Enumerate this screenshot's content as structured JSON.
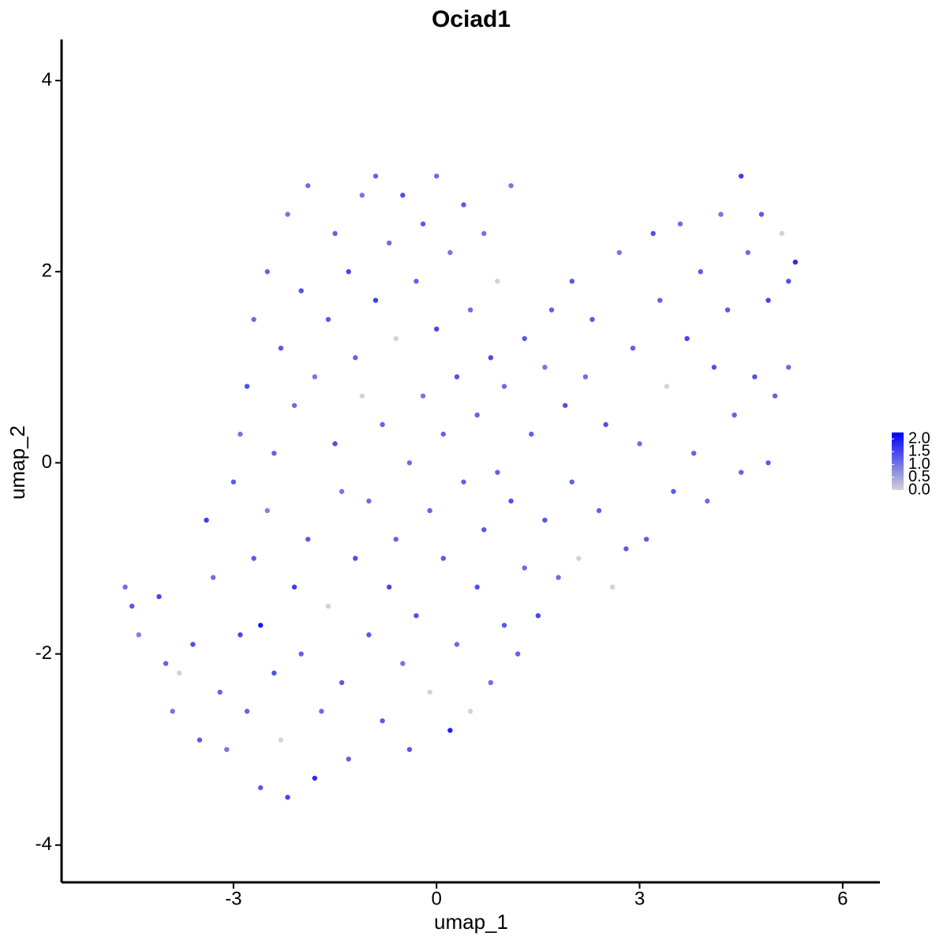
{
  "chart_data": {
    "type": "scatter",
    "title": "Ociad1",
    "x_label": "umap_1",
    "y_label": "umap_2",
    "x": [
      -4.6,
      -4.5,
      -4.4,
      -4.1,
      -4.0,
      -3.9,
      -3.8,
      -3.6,
      -3.5,
      -3.4,
      -3.3,
      -3.2,
      -3.1,
      -3.0,
      -2.9,
      -2.9,
      -2.8,
      -2.8,
      -2.7,
      -2.7,
      -2.6,
      -2.6,
      -2.5,
      -2.5,
      -2.4,
      -2.4,
      -2.3,
      -2.3,
      -2.2,
      -2.2,
      -2.1,
      -2.1,
      -2.0,
      -2.0,
      -1.9,
      -1.9,
      -1.8,
      -1.8,
      -1.7,
      -1.6,
      -1.6,
      -1.5,
      -1.5,
      -1.4,
      -1.4,
      -1.3,
      -1.3,
      -1.2,
      -1.2,
      -1.1,
      -1.1,
      -1.0,
      -1.0,
      -0.9,
      -0.9,
      -0.8,
      -0.8,
      -0.7,
      -0.7,
      -0.6,
      -0.6,
      -0.5,
      -0.5,
      -0.4,
      -0.4,
      -0.3,
      -0.3,
      -0.2,
      -0.2,
      -0.1,
      -0.1,
      0.0,
      0.0,
      0.1,
      0.1,
      0.2,
      0.2,
      0.3,
      0.3,
      0.4,
      0.4,
      0.5,
      0.5,
      0.6,
      0.6,
      0.7,
      0.7,
      0.8,
      0.8,
      0.9,
      0.9,
      1.0,
      1.0,
      1.1,
      1.1,
      1.2,
      1.3,
      1.3,
      1.4,
      1.5,
      1.6,
      1.6,
      1.7,
      1.8,
      1.9,
      2.0,
      2.0,
      2.1,
      2.2,
      2.3,
      2.4,
      2.5,
      2.6,
      2.7,
      2.8,
      2.9,
      3.0,
      3.1,
      3.2,
      3.3,
      3.4,
      3.5,
      3.6,
      3.7,
      3.8,
      3.9,
      4.0,
      4.1,
      4.2,
      4.3,
      4.4,
      4.5,
      4.6,
      4.7,
      4.8,
      4.9,
      5.0,
      5.1,
      5.2,
      5.3,
      5.2,
      4.9,
      4.5
    ],
    "y": [
      -1.3,
      -1.5,
      -1.8,
      -1.4,
      -2.1,
      -2.6,
      -2.2,
      -1.9,
      -2.9,
      -0.6,
      -1.2,
      -2.4,
      -3.0,
      -0.2,
      0.3,
      -1.8,
      -2.6,
      0.8,
      1.5,
      -1.0,
      -1.7,
      -3.4,
      2.0,
      -0.5,
      -2.2,
      0.1,
      1.2,
      -2.9,
      -3.5,
      2.6,
      -1.3,
      0.6,
      1.8,
      -2.0,
      2.9,
      -0.8,
      -3.3,
      0.9,
      -2.6,
      1.5,
      -1.5,
      2.4,
      0.2,
      -2.3,
      -0.3,
      2.0,
      -3.1,
      1.1,
      -1.0,
      2.8,
      0.7,
      -1.8,
      -0.4,
      1.7,
      3.0,
      -2.7,
      0.4,
      2.3,
      -1.3,
      1.3,
      -0.8,
      -2.1,
      2.8,
      0.0,
      -3.0,
      1.9,
      -1.6,
      0.7,
      2.5,
      -0.5,
      -2.4,
      1.4,
      3.0,
      -1.0,
      0.3,
      -2.8,
      2.2,
      -1.9,
      0.9,
      -0.2,
      2.7,
      -2.6,
      1.6,
      -1.3,
      0.5,
      2.4,
      -0.7,
      1.1,
      -2.3,
      -0.1,
      1.9,
      -1.7,
      0.8,
      -0.4,
      2.9,
      -2.0,
      1.3,
      -1.1,
      0.3,
      -1.6,
      1.0,
      -0.6,
      1.6,
      -1.2,
      0.6,
      1.9,
      -0.2,
      -1.0,
      0.9,
      1.5,
      -0.5,
      0.4,
      -1.3,
      2.2,
      -0.9,
      1.2,
      0.2,
      -0.8,
      2.4,
      1.7,
      0.8,
      -0.3,
      2.5,
      1.3,
      0.1,
      2.0,
      -0.4,
      1.0,
      2.6,
      1.6,
      0.5,
      3.0,
      2.2,
      0.9,
      2.6,
      1.7,
      0.7,
      2.4,
      1.9,
      2.1,
      1.0,
      0.0,
      -0.1
    ],
    "values": [
      1.1,
      1.3,
      0.9,
      1.5,
      1.2,
      1.0,
      0,
      1.4,
      1.3,
      1.6,
      1.1,
      1.2,
      1.0,
      1.3,
      1.0,
      1.5,
      1.2,
      1.4,
      1.1,
      1.3,
      2.0,
      1.3,
      1.2,
      0.9,
      1.4,
      1.2,
      1.3,
      0,
      1.5,
      1.0,
      1.6,
      1.1,
      1.4,
      1.2,
      1.1,
      1.3,
      1.8,
      1.0,
      1.1,
      1.3,
      0,
      1.2,
      1.4,
      1.3,
      1.0,
      1.5,
      1.2,
      1.2,
      1.4,
      1.0,
      0,
      1.3,
      1.1,
      1.6,
      1.2,
      1.3,
      1.2,
      1.1,
      1.5,
      0,
      1.2,
      1.0,
      1.4,
      1.1,
      1.3,
      1.2,
      1.4,
      1.0,
      1.3,
      1.2,
      0,
      1.5,
      1.1,
      1.3,
      1.2,
      1.9,
      1.0,
      1.1,
      1.4,
      1.2,
      1.3,
      0,
      1.1,
      1.4,
      1.2,
      1.0,
      1.3,
      1.5,
      1.1,
      1.2,
      0,
      1.3,
      1.1,
      1.4,
      1.0,
      1.2,
      1.3,
      1.1,
      1.2,
      1.5,
      1.0,
      1.3,
      1.2,
      1.1,
      1.4,
      1.3,
      1.2,
      0,
      1.1,
      1.3,
      1.2,
      1.4,
      0,
      1.0,
      1.3,
      1.2,
      1.1,
      1.3,
      1.4,
      1.2,
      0,
      1.3,
      1.1,
      1.5,
      1.2,
      1.3,
      1.1,
      1.4,
      1.0,
      1.3,
      1.2,
      1.6,
      1.1,
      1.4,
      1.3,
      1.5,
      1.2,
      0,
      1.4,
      1.8,
      1.1,
      1.3,
      1.2
    ],
    "xlim": [
      -5.54,
      6.55
    ],
    "ylim": [
      -4.39,
      4.43
    ],
    "xticks": [
      -3,
      0,
      3,
      6
    ],
    "yticks": [
      -4,
      -2,
      0,
      2,
      4
    ],
    "color_low": "#d3d3d3",
    "color_high": "#0000ff",
    "clim": [
      0,
      2.25
    ],
    "cticks": [
      {
        "value": 0,
        "label": "0.0"
      },
      {
        "value": 0.5,
        "label": "0.5"
      },
      {
        "value": 1,
        "label": "1.0"
      },
      {
        "value": 1.5,
        "label": "1.5"
      },
      {
        "value": 2,
        "label": "2.0"
      }
    ]
  }
}
